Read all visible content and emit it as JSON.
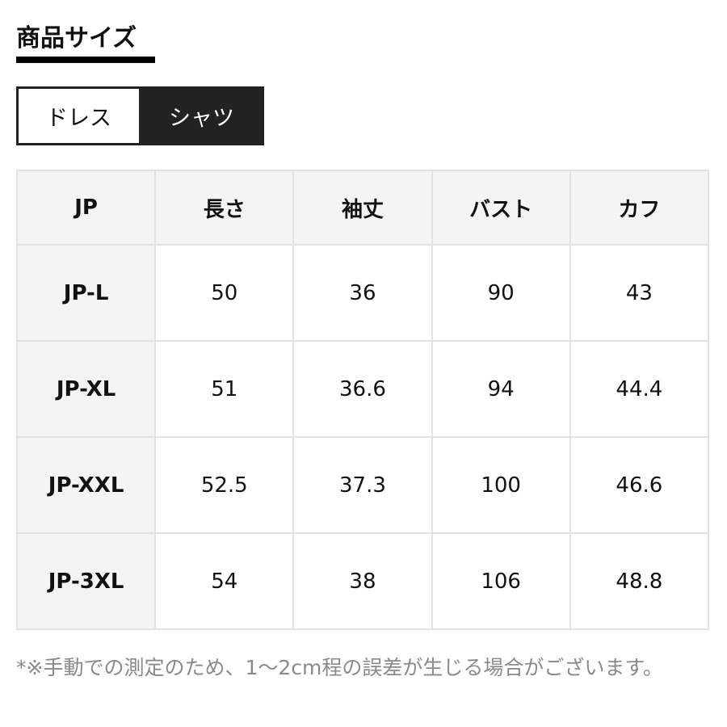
{
  "title": "商品サイズ",
  "tabs": [
    {
      "label": "ドレス",
      "active": false
    },
    {
      "label": "シャツ",
      "active": true
    }
  ],
  "table": {
    "headers": [
      "JP",
      "長さ",
      "袖丈",
      "バスト",
      "カフ"
    ],
    "rows": [
      [
        "JP-L",
        "50",
        "36",
        "90",
        "43"
      ],
      [
        "JP-XL",
        "51",
        "36.6",
        "94",
        "44.4"
      ],
      [
        "JP-XXL",
        "52.5",
        "37.3",
        "100",
        "46.6"
      ],
      [
        "JP-3XL",
        "54",
        "38",
        "106",
        "48.8"
      ]
    ]
  },
  "note": "*※手動での測定のため、1〜2cm程の誤差が生じる場合がございます。"
}
